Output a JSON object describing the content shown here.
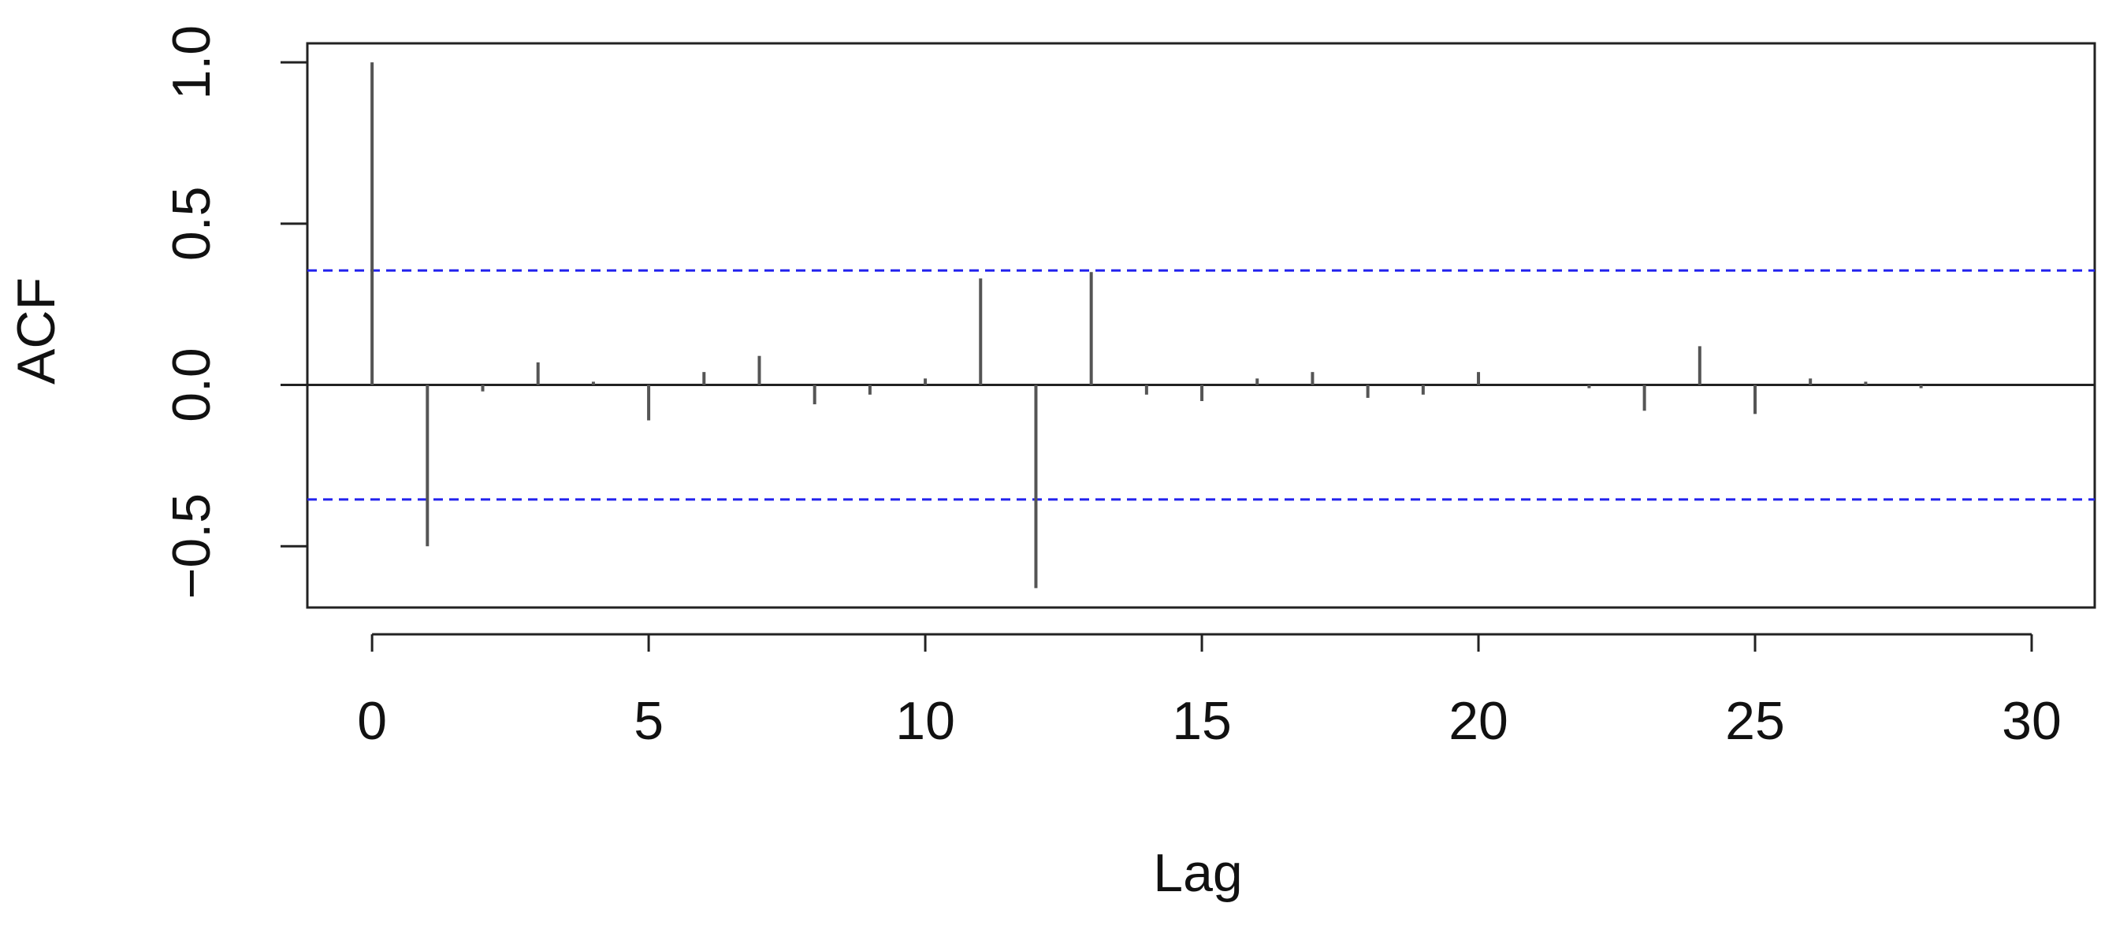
{
  "chart_data": {
    "type": "acf",
    "xlabel": "Lag",
    "ylabel": "ACF",
    "x": [
      0,
      1,
      2,
      3,
      4,
      5,
      6,
      7,
      8,
      9,
      10,
      11,
      12,
      13,
      14,
      15,
      16,
      17,
      18,
      19,
      20,
      21,
      22,
      23,
      24,
      25,
      26,
      27,
      28
    ],
    "values": [
      1.0,
      -0.5,
      -0.02,
      0.07,
      0.01,
      -0.11,
      0.04,
      0.09,
      -0.06,
      -0.03,
      0.02,
      0.33,
      -0.63,
      0.35,
      -0.03,
      -0.05,
      0.02,
      0.04,
      -0.04,
      -0.03,
      0.04,
      0.0,
      -0.01,
      -0.08,
      0.12,
      -0.09,
      0.02,
      0.01,
      -0.01
    ],
    "color": "#555555",
    "confidence_bounds": [
      0.355,
      -0.355
    ],
    "confidence_color": "#2222ee",
    "xlim": [
      -1.17,
      31.14
    ],
    "ylim": [
      -0.69,
      1.059
    ],
    "xticks": [
      0,
      5,
      10,
      15,
      20,
      25,
      30
    ],
    "yticks": [
      {
        "value": -0.5,
        "label": "−0.5"
      },
      {
        "value": 0,
        "label": "0.0"
      },
      {
        "value": 0.5,
        "label": "0.5"
      },
      {
        "value": 1,
        "label": "1.0"
      }
    ]
  }
}
